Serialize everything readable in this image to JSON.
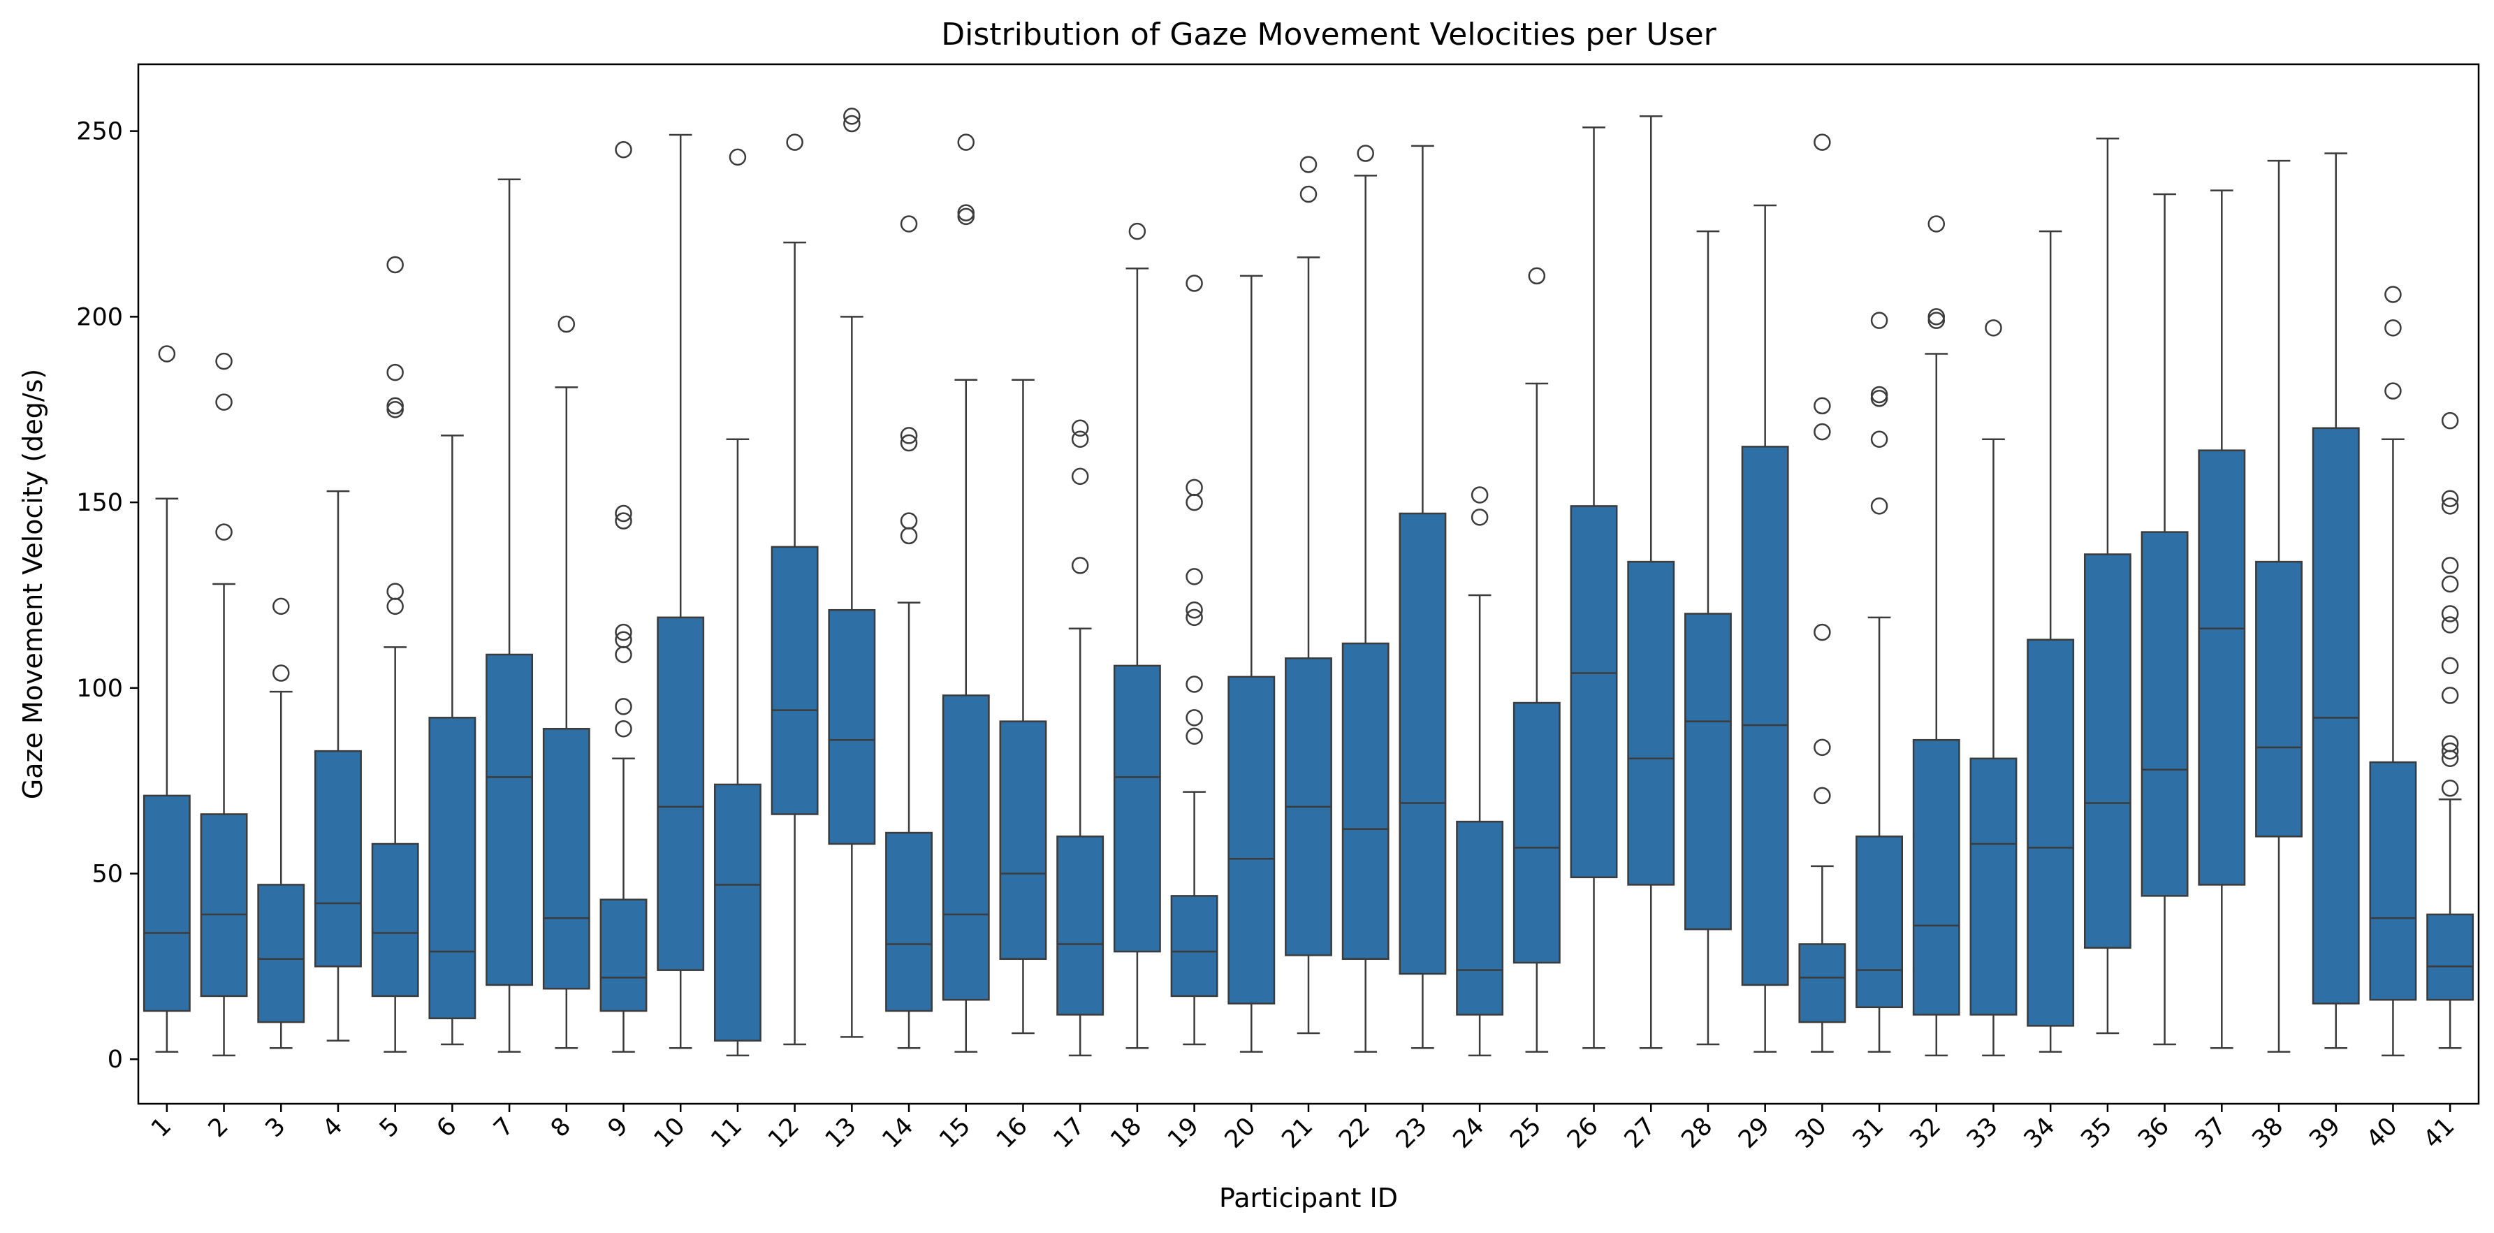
{
  "chart_data": {
    "type": "box",
    "title": "Distribution of Gaze Movement Velocities per User",
    "xlabel": "Participant ID",
    "ylabel": "Gaze Movement Velocity (deg/s)",
    "ylim": [
      -12,
      268
    ],
    "yticks": [
      0,
      50,
      100,
      150,
      200,
      250
    ],
    "grid": false,
    "legend": "none",
    "colors": {
      "box": "#2e6fa6",
      "stroke": "#3b3b3b",
      "background": "#ffffff"
    },
    "categories": [
      "1",
      "2",
      "3",
      "4",
      "5",
      "6",
      "7",
      "8",
      "9",
      "10",
      "11",
      "12",
      "13",
      "14",
      "15",
      "16",
      "17",
      "18",
      "19",
      "20",
      "21",
      "22",
      "23",
      "24",
      "25",
      "26",
      "27",
      "28",
      "29",
      "30",
      "31",
      "32",
      "33",
      "34",
      "35",
      "36",
      "37",
      "38",
      "39",
      "40",
      "41"
    ],
    "boxes": [
      {
        "min": 2,
        "q1": 13,
        "median": 34,
        "q3": 71,
        "max": 151,
        "outliers": [
          190
        ]
      },
      {
        "min": 1,
        "q1": 17,
        "median": 39,
        "q3": 66,
        "max": 128,
        "outliers": [
          142,
          177,
          188
        ]
      },
      {
        "min": 3,
        "q1": 10,
        "median": 27,
        "q3": 47,
        "max": 99,
        "outliers": [
          104,
          122
        ]
      },
      {
        "min": 5,
        "q1": 25,
        "median": 42,
        "q3": 83,
        "max": 153,
        "outliers": []
      },
      {
        "min": 2,
        "q1": 17,
        "median": 34,
        "q3": 58,
        "max": 111,
        "outliers": [
          122,
          126,
          175,
          176,
          185,
          214
        ]
      },
      {
        "min": 4,
        "q1": 11,
        "median": 29,
        "q3": 92,
        "max": 168,
        "outliers": []
      },
      {
        "min": 2,
        "q1": 20,
        "median": 76,
        "q3": 109,
        "max": 237,
        "outliers": []
      },
      {
        "min": 3,
        "q1": 19,
        "median": 38,
        "q3": 89,
        "max": 181,
        "outliers": [
          198
        ]
      },
      {
        "min": 2,
        "q1": 13,
        "median": 22,
        "q3": 43,
        "max": 81,
        "outliers": [
          89,
          95,
          109,
          113,
          115,
          145,
          147,
          245
        ]
      },
      {
        "min": 3,
        "q1": 24,
        "median": 68,
        "q3": 119,
        "max": 249,
        "outliers": []
      },
      {
        "min": 1,
        "q1": 5,
        "median": 47,
        "q3": 74,
        "max": 167,
        "outliers": [
          243
        ]
      },
      {
        "min": 4,
        "q1": 66,
        "median": 94,
        "q3": 138,
        "max": 220,
        "outliers": [
          247
        ]
      },
      {
        "min": 6,
        "q1": 58,
        "median": 86,
        "q3": 121,
        "max": 200,
        "outliers": [
          252,
          254
        ]
      },
      {
        "min": 3,
        "q1": 13,
        "median": 31,
        "q3": 61,
        "max": 123,
        "outliers": [
          141,
          145,
          166,
          168,
          225
        ]
      },
      {
        "min": 2,
        "q1": 16,
        "median": 39,
        "q3": 98,
        "max": 183,
        "outliers": [
          227,
          228,
          247
        ]
      },
      {
        "min": 7,
        "q1": 27,
        "median": 50,
        "q3": 91,
        "max": 183,
        "outliers": []
      },
      {
        "min": 1,
        "q1": 12,
        "median": 31,
        "q3": 60,
        "max": 116,
        "outliers": [
          133,
          157,
          167,
          170
        ]
      },
      {
        "min": 3,
        "q1": 29,
        "median": 76,
        "q3": 106,
        "max": 213,
        "outliers": [
          223
        ]
      },
      {
        "min": 4,
        "q1": 17,
        "median": 29,
        "q3": 44,
        "max": 72,
        "outliers": [
          87,
          92,
          101,
          119,
          121,
          130,
          150,
          154,
          209
        ]
      },
      {
        "min": 2,
        "q1": 15,
        "median": 54,
        "q3": 103,
        "max": 211,
        "outliers": []
      },
      {
        "min": 7,
        "q1": 28,
        "median": 68,
        "q3": 108,
        "max": 216,
        "outliers": [
          233,
          241
        ]
      },
      {
        "min": 2,
        "q1": 27,
        "median": 62,
        "q3": 112,
        "max": 238,
        "outliers": [
          244
        ]
      },
      {
        "min": 3,
        "q1": 23,
        "median": 69,
        "q3": 147,
        "max": 246,
        "outliers": []
      },
      {
        "min": 1,
        "q1": 12,
        "median": 24,
        "q3": 64,
        "max": 125,
        "outliers": [
          146,
          152
        ]
      },
      {
        "min": 2,
        "q1": 26,
        "median": 57,
        "q3": 96,
        "max": 182,
        "outliers": [
          211
        ]
      },
      {
        "min": 3,
        "q1": 49,
        "median": 104,
        "q3": 149,
        "max": 251,
        "outliers": []
      },
      {
        "min": 3,
        "q1": 47,
        "median": 81,
        "q3": 134,
        "max": 254,
        "outliers": []
      },
      {
        "min": 4,
        "q1": 35,
        "median": 91,
        "q3": 120,
        "max": 223,
        "outliers": []
      },
      {
        "min": 2,
        "q1": 20,
        "median": 90,
        "q3": 165,
        "max": 230,
        "outliers": []
      },
      {
        "min": 2,
        "q1": 10,
        "median": 22,
        "q3": 31,
        "max": 52,
        "outliers": [
          71,
          84,
          115,
          169,
          176,
          247
        ]
      },
      {
        "min": 2,
        "q1": 14,
        "median": 24,
        "q3": 60,
        "max": 119,
        "outliers": [
          149,
          167,
          178,
          179,
          199
        ]
      },
      {
        "min": 1,
        "q1": 12,
        "median": 36,
        "q3": 86,
        "max": 190,
        "outliers": [
          199,
          200,
          225
        ]
      },
      {
        "min": 1,
        "q1": 12,
        "median": 58,
        "q3": 81,
        "max": 167,
        "outliers": [
          197
        ]
      },
      {
        "min": 2,
        "q1": 9,
        "median": 57,
        "q3": 113,
        "max": 223,
        "outliers": []
      },
      {
        "min": 7,
        "q1": 30,
        "median": 69,
        "q3": 136,
        "max": 248,
        "outliers": []
      },
      {
        "min": 4,
        "q1": 44,
        "median": 78,
        "q3": 142,
        "max": 233,
        "outliers": []
      },
      {
        "min": 3,
        "q1": 47,
        "median": 116,
        "q3": 164,
        "max": 234,
        "outliers": []
      },
      {
        "min": 2,
        "q1": 60,
        "median": 84,
        "q3": 134,
        "max": 242,
        "outliers": []
      },
      {
        "min": 3,
        "q1": 15,
        "median": 92,
        "q3": 170,
        "max": 244,
        "outliers": []
      },
      {
        "min": 1,
        "q1": 16,
        "median": 38,
        "q3": 80,
        "max": 167,
        "outliers": [
          180,
          197,
          206
        ]
      },
      {
        "min": 3,
        "q1": 16,
        "median": 25,
        "q3": 39,
        "max": 70,
        "outliers": [
          73,
          81,
          83,
          85,
          98,
          106,
          117,
          120,
          128,
          133,
          149,
          151,
          172
        ]
      }
    ]
  }
}
